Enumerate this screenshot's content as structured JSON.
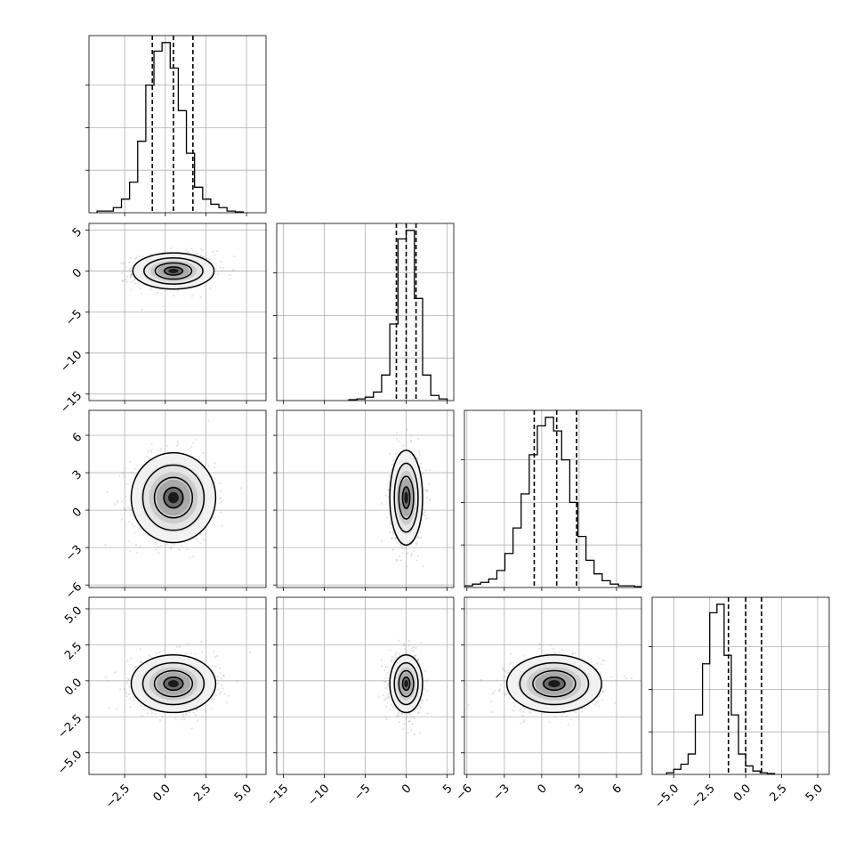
{
  "chart_data": {
    "type": "corner",
    "grid": true,
    "variables": [
      {
        "range": [
          -4.7,
          6.2
        ],
        "ticks": [
          -2.5,
          0.0,
          2.5,
          5.0
        ],
        "tick_labels": [
          "−2.5",
          "0.0",
          "2.5",
          "5.0"
        ],
        "quantiles": [
          -0.8,
          0.5,
          1.7
        ],
        "hist_start": -4.2,
        "hist_step": 0.5,
        "hist": [
          1,
          1,
          3,
          8,
          18,
          42,
          75,
          95,
          100,
          85,
          60,
          35,
          15,
          8,
          5,
          3,
          1,
          0.5
        ]
      },
      {
        "range": [
          -15.8,
          5.8
        ],
        "ticks": [
          -15,
          -10,
          -5,
          0,
          5
        ],
        "tick_labels": [
          "−15",
          "−10",
          "−5",
          "0",
          "5"
        ],
        "quantiles": [
          -1.2,
          0.0,
          1.2
        ],
        "hist_start": -7.0,
        "hist_step": 1.0,
        "hist": [
          0.5,
          1,
          2,
          5,
          15,
          45,
          95,
          100,
          60,
          15,
          3,
          1
        ]
      },
      {
        "range": [
          -6.2,
          8.0
        ],
        "ticks": [
          -6,
          -3,
          0,
          3,
          6
        ],
        "tick_labels": [
          "−6",
          "−3",
          "0",
          "3",
          "6"
        ],
        "quantiles": [
          -0.6,
          1.2,
          2.8
        ],
        "hist_start": -6.2,
        "hist_step": 0.65,
        "hist": [
          1,
          2,
          3,
          5,
          10,
          20,
          35,
          55,
          78,
          95,
          100,
          92,
          75,
          50,
          30,
          16,
          8,
          4,
          2,
          1,
          1,
          0.5
        ]
      },
      {
        "range": [
          -6.5,
          5.8
        ],
        "ticks": [
          -5.0,
          -2.5,
          0.0,
          2.5,
          5.0
        ],
        "tick_labels": [
          "−5.0",
          "−2.5",
          "0.0",
          "2.5",
          "5.0"
        ],
        "quantiles": [
          -1.2,
          0.0,
          1.1
        ],
        "hist_start": -5.5,
        "hist_step": 0.5,
        "hist": [
          1,
          3,
          6,
          12,
          35,
          65,
          95,
          100,
          70,
          35,
          12,
          5,
          2,
          1,
          0.5
        ]
      }
    ],
    "pairs": [
      {
        "row": 1,
        "col": 0,
        "mean": [
          0.5,
          0.0
        ],
        "sd": [
          1.25,
          1.1
        ],
        "rho": 0.1
      },
      {
        "row": 2,
        "col": 0,
        "mean": [
          0.5,
          1.0
        ],
        "sd": [
          1.3,
          1.8
        ],
        "rho": 0.0
      },
      {
        "row": 2,
        "col": 1,
        "mean": [
          0.0,
          1.0
        ],
        "sd": [
          1.0,
          1.9
        ],
        "rho": 0.0
      },
      {
        "row": 3,
        "col": 0,
        "mean": [
          0.5,
          -0.2
        ],
        "sd": [
          1.3,
          1.0
        ],
        "rho": 0.0
      },
      {
        "row": 3,
        "col": 1,
        "mean": [
          0.0,
          -0.2
        ],
        "sd": [
          1.0,
          1.0
        ],
        "rho": 0.0
      },
      {
        "row": 3,
        "col": 2,
        "mean": [
          1.0,
          -0.2
        ],
        "sd": [
          1.9,
          1.0
        ],
        "rho": 0.0
      }
    ]
  }
}
